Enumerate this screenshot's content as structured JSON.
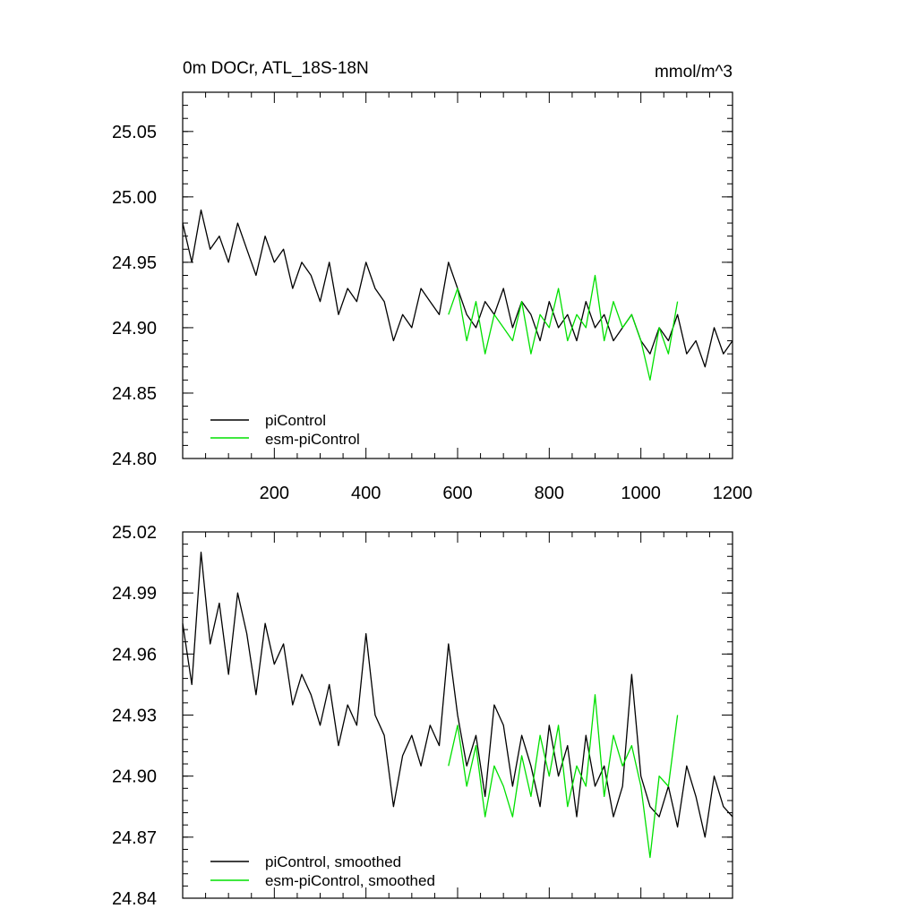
{
  "chart_data": [
    {
      "type": "line",
      "title": "0m DOCr, ATL_18S-18N",
      "units": "mmol/m^3",
      "xlim": [
        0,
        1200
      ],
      "ylim": [
        24.8,
        25.08
      ],
      "x_tick_labels": [
        "200",
        "400",
        "600",
        "800",
        "1000",
        "1200"
      ],
      "x_tick_values": [
        200,
        400,
        600,
        800,
        1000,
        1200
      ],
      "x_tick_labels_visible": true,
      "y_tick_labels": [
        "24.80",
        "24.85",
        "24.90",
        "24.95",
        "25.00",
        "25.05"
      ],
      "y_tick_values": [
        24.8,
        24.85,
        24.9,
        24.95,
        25.0,
        25.05
      ],
      "legend_position": "bottom-left",
      "grid": false,
      "series": [
        {
          "name": "piControl",
          "color": "#000000",
          "x": [
            0,
            20,
            40,
            60,
            80,
            100,
            120,
            140,
            160,
            180,
            200,
            220,
            240,
            260,
            280,
            300,
            320,
            340,
            360,
            380,
            400,
            420,
            440,
            460,
            480,
            500,
            520,
            540,
            560,
            580,
            600,
            620,
            640,
            660,
            680,
            700,
            720,
            740,
            760,
            780,
            800,
            820,
            840,
            860,
            880,
            900,
            920,
            940,
            960,
            980,
            1000,
            1020,
            1040,
            1060,
            1080,
            1100,
            1120,
            1140,
            1160,
            1180,
            1200
          ],
          "y": [
            24.98,
            24.95,
            24.99,
            24.96,
            24.97,
            24.95,
            24.98,
            24.96,
            24.94,
            24.97,
            24.95,
            24.96,
            24.93,
            24.95,
            24.94,
            24.92,
            24.95,
            24.91,
            24.93,
            24.92,
            24.95,
            24.93,
            24.92,
            24.89,
            24.91,
            24.9,
            24.93,
            24.92,
            24.91,
            24.95,
            24.93,
            24.91,
            24.9,
            24.92,
            24.91,
            24.93,
            24.9,
            24.92,
            24.91,
            24.89,
            24.92,
            24.9,
            24.91,
            24.89,
            24.92,
            24.9,
            24.91,
            24.89,
            24.9,
            24.91,
            24.89,
            24.88,
            24.9,
            24.89,
            24.91,
            24.88,
            24.89,
            24.87,
            24.9,
            24.88,
            24.89
          ]
        },
        {
          "name": "esm-piControl",
          "color": "#00e000",
          "x": [
            580,
            600,
            620,
            640,
            660,
            680,
            700,
            720,
            740,
            760,
            780,
            800,
            820,
            840,
            860,
            880,
            900,
            920,
            940,
            960,
            980,
            1000,
            1020,
            1040,
            1060,
            1080
          ],
          "y": [
            24.91,
            24.93,
            24.89,
            24.92,
            24.88,
            24.91,
            24.9,
            24.89,
            24.92,
            24.88,
            24.91,
            24.9,
            24.93,
            24.89,
            24.91,
            24.9,
            24.94,
            24.89,
            24.92,
            24.9,
            24.91,
            24.89,
            24.86,
            24.9,
            24.88,
            24.92
          ]
        }
      ]
    },
    {
      "type": "line",
      "xlim": [
        0,
        1200
      ],
      "ylim": [
        24.84,
        25.02
      ],
      "x_tick_values": [
        200,
        400,
        600,
        800,
        1000,
        1200
      ],
      "x_tick_labels_visible": false,
      "y_tick_labels": [
        "24.84",
        "24.87",
        "24.90",
        "24.93",
        "24.96",
        "24.99",
        "25.02"
      ],
      "y_tick_values": [
        24.84,
        24.87,
        24.9,
        24.93,
        24.96,
        24.99,
        25.02
      ],
      "legend_position": "bottom-left",
      "grid": false,
      "series": [
        {
          "name": "piControl, smoothed",
          "color": "#000000",
          "x": [
            0,
            20,
            40,
            60,
            80,
            100,
            120,
            140,
            160,
            180,
            200,
            220,
            240,
            260,
            280,
            300,
            320,
            340,
            360,
            380,
            400,
            420,
            440,
            460,
            480,
            500,
            520,
            540,
            560,
            580,
            600,
            620,
            640,
            660,
            680,
            700,
            720,
            740,
            760,
            780,
            800,
            820,
            840,
            860,
            880,
            900,
            920,
            940,
            960,
            980,
            1000,
            1020,
            1040,
            1060,
            1080,
            1100,
            1120,
            1140,
            1160,
            1180,
            1200
          ],
          "y": [
            24.975,
            24.945,
            25.01,
            24.965,
            24.985,
            24.95,
            24.99,
            24.97,
            24.94,
            24.975,
            24.955,
            24.965,
            24.935,
            24.95,
            24.94,
            24.925,
            24.945,
            24.915,
            24.935,
            24.925,
            24.97,
            24.93,
            24.92,
            24.885,
            24.91,
            24.92,
            24.905,
            24.925,
            24.915,
            24.965,
            24.93,
            24.905,
            24.92,
            24.89,
            24.935,
            24.925,
            24.895,
            24.92,
            24.905,
            24.885,
            24.925,
            24.9,
            24.915,
            24.88,
            24.92,
            24.895,
            24.905,
            24.88,
            24.895,
            24.95,
            24.9,
            24.885,
            24.88,
            24.895,
            24.875,
            24.905,
            24.89,
            24.87,
            24.9,
            24.885,
            24.88
          ]
        },
        {
          "name": "esm-piControl, smoothed",
          "color": "#00e000",
          "x": [
            580,
            600,
            620,
            640,
            660,
            680,
            700,
            720,
            740,
            760,
            780,
            800,
            820,
            840,
            860,
            880,
            900,
            920,
            940,
            960,
            980,
            1000,
            1020,
            1040,
            1060,
            1080
          ],
          "y": [
            24.905,
            24.925,
            24.895,
            24.915,
            24.88,
            24.905,
            24.895,
            24.88,
            24.91,
            24.89,
            24.92,
            24.9,
            24.925,
            24.885,
            24.905,
            24.895,
            24.94,
            24.89,
            24.92,
            24.905,
            24.915,
            24.895,
            24.86,
            24.9,
            24.895,
            24.93
          ]
        }
      ]
    }
  ]
}
